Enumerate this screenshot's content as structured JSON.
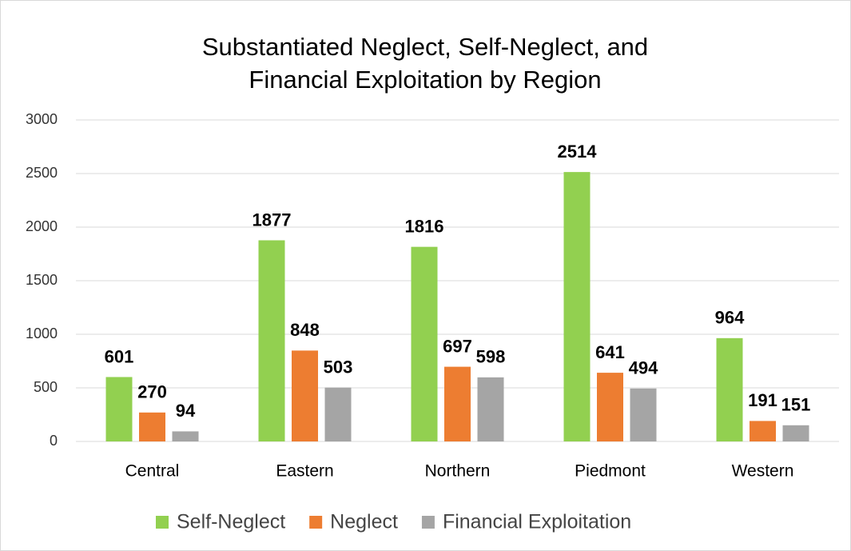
{
  "chart_data": {
    "type": "bar",
    "title": "Substantiated Neglect, Self-Neglect, and Financial Exploitation by Region",
    "categories": [
      "Central",
      "Eastern",
      "Northern",
      "Piedmont",
      "Western"
    ],
    "series": [
      {
        "name": "Self-Neglect",
        "color": "#92d050",
        "values": [
          601,
          1877,
          1816,
          2514,
          964
        ]
      },
      {
        "name": "Neglect",
        "color": "#ed7d31",
        "values": [
          270,
          848,
          697,
          641,
          191
        ]
      },
      {
        "name": "Financial Exploitation",
        "color": "#a5a5a5",
        "values": [
          94,
          503,
          598,
          494,
          151
        ]
      }
    ],
    "ylim": [
      0,
      3000
    ],
    "yticks": [
      0,
      500,
      1000,
      1500,
      2000,
      2500,
      3000
    ],
    "grid": true,
    "legend": "bottom"
  }
}
